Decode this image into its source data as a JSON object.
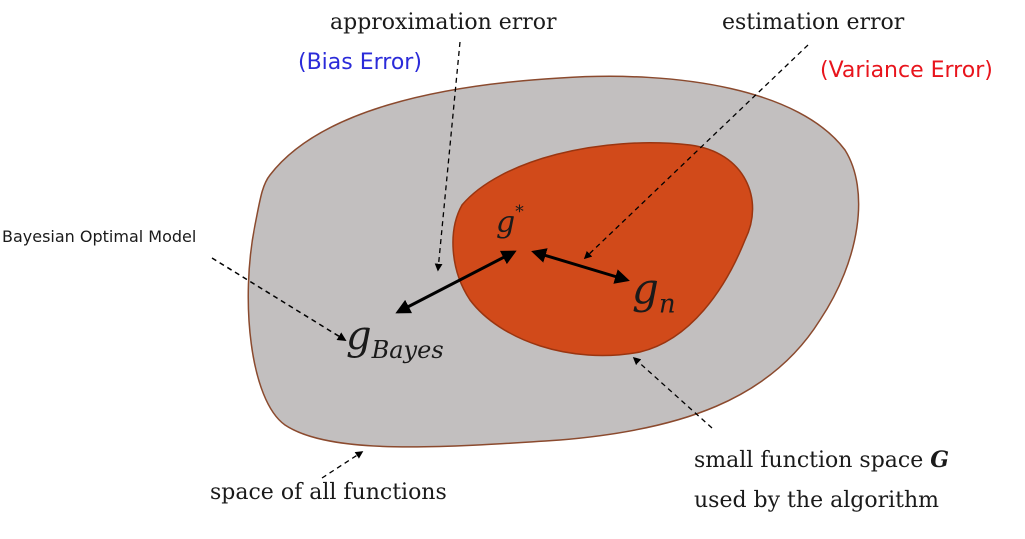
{
  "labels": {
    "approximation_error": "approximation error",
    "bias_error": "(Bias Error)",
    "estimation_error": "estimation error",
    "variance_error": "(Variance Error)",
    "bayesian_optimal_model": "Bayesian Optimal Model",
    "g_star_base": "g",
    "g_star_sup": "*",
    "g_n_base": "g",
    "g_n_sub": "n",
    "g_bayes_base": "g",
    "g_bayes_sub": "Bayes",
    "space_of_all_functions": "space of all functions",
    "small_function_space": "small function space",
    "small_function_space_symbol": "G",
    "used_by_algorithm": "used by the algorithm"
  },
  "colors": {
    "outer_region": "#c2bfbf",
    "outer_stroke": "#8b4a2e",
    "inner_region": "#d14a1a",
    "inner_stroke": "#9a3510",
    "bias_error": "#2b2bd9",
    "variance_error": "#e8141c",
    "arrows": "#000000"
  }
}
